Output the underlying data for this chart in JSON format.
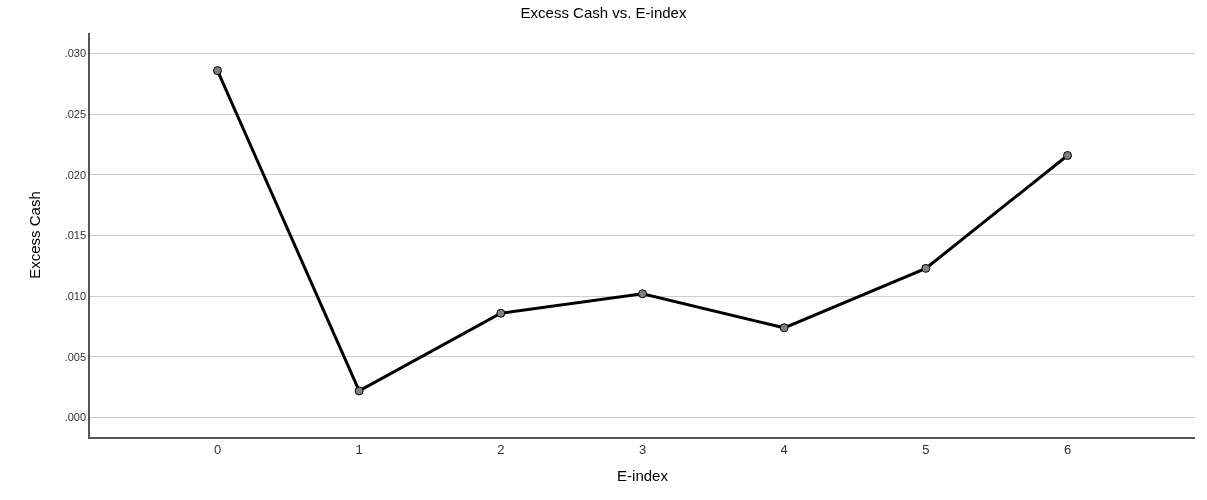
{
  "chart_data": {
    "type": "line",
    "title": "Excess Cash vs. E-index",
    "xlabel": "E-index",
    "ylabel": "Excess Cash",
    "categories": [
      "0",
      "1",
      "2",
      "3",
      "4",
      "5",
      "6"
    ],
    "series": [
      {
        "color": "#000000",
        "values": [
          0.0286,
          0.0022,
          0.0086,
          0.0102,
          0.0074,
          0.0123,
          0.0216
        ]
      }
    ],
    "ylim": [
      -0.0016,
      0.0317
    ],
    "yticks": [
      {
        "value": 0,
        "label": ".000"
      },
      {
        "value": 0.005,
        "label": ".005"
      },
      {
        "value": 0.01,
        "label": ".010"
      },
      {
        "value": 0.015,
        "label": ".015"
      },
      {
        "value": 0.02,
        "label": ".020"
      },
      {
        "value": 0.025,
        "label": ".025"
      },
      {
        "value": 0.03,
        "label": ".030"
      }
    ],
    "grid": "y",
    "marker": "circle",
    "line_style": "solid"
  }
}
